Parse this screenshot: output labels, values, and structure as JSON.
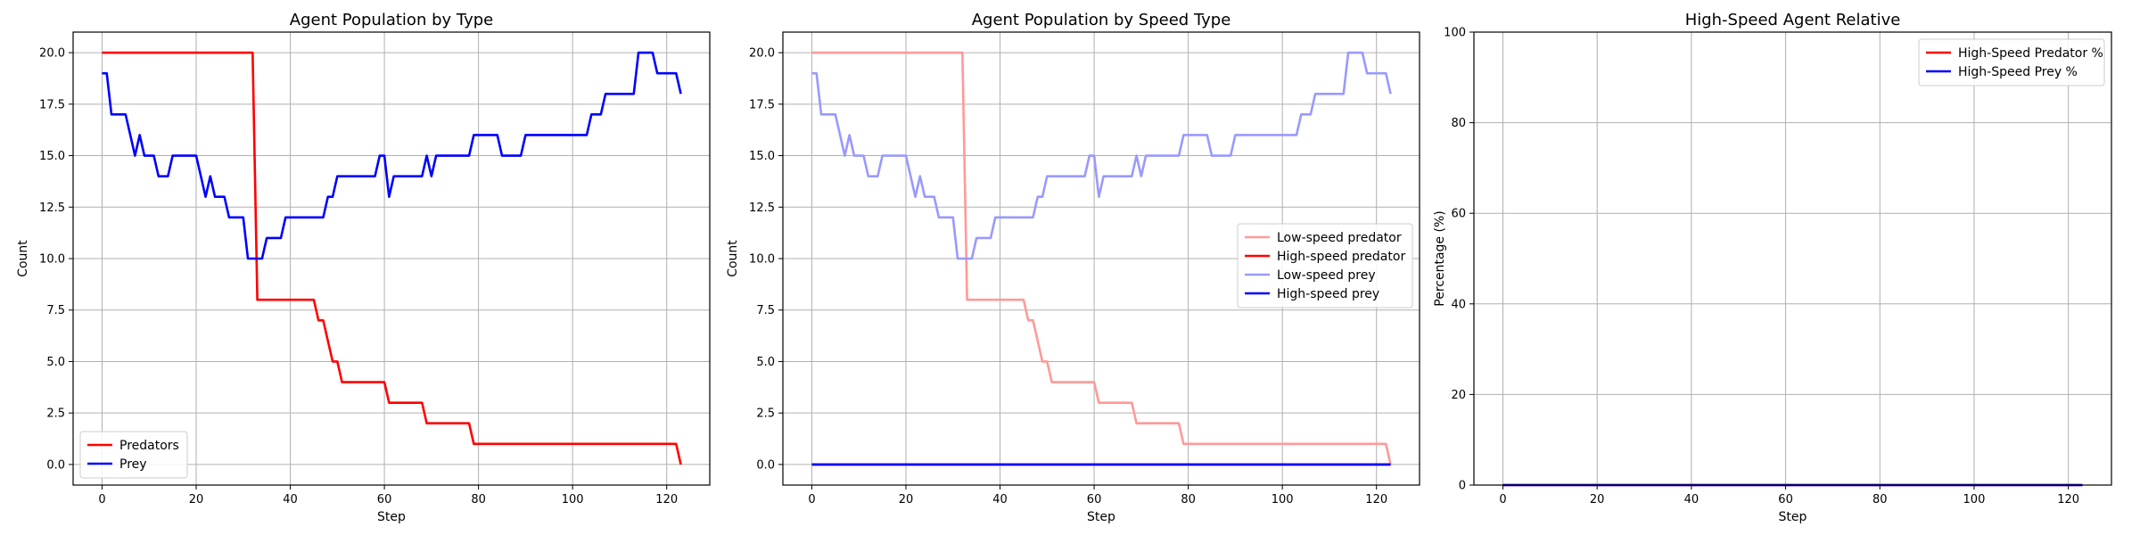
{
  "chart_data": [
    {
      "type": "line",
      "title": "Agent Population by Type",
      "xlabel": "Step",
      "ylabel": "Count",
      "xlim": [
        -6.15,
        129.15
      ],
      "ylim": [
        -1,
        21
      ],
      "xticks": [
        0,
        20,
        40,
        60,
        80,
        100,
        120
      ],
      "xtick_labels": [
        "0",
        "20",
        "40",
        "60",
        "80",
        "100",
        "120"
      ],
      "yticks": [
        0,
        2.5,
        5,
        7.5,
        10,
        12.5,
        15,
        17.5,
        20
      ],
      "ytick_labels": [
        "0.0",
        "2.5",
        "5.0",
        "7.5",
        "10.0",
        "12.5",
        "15.0",
        "17.5",
        "20.0"
      ],
      "grid": true,
      "legend_position": "lower-left",
      "series": [
        {
          "name": "Predators",
          "color": "#ff0000",
          "step_ranges": [
            [
              0,
              32,
              20
            ],
            [
              33,
              45,
              8
            ],
            [
              46,
              47,
              7
            ],
            [
              48,
              48,
              6
            ],
            [
              49,
              50,
              5
            ],
            [
              51,
              60,
              4
            ],
            [
              61,
              68,
              3
            ],
            [
              69,
              78,
              2
            ],
            [
              79,
              122,
              1
            ],
            [
              123,
              123,
              0
            ]
          ]
        },
        {
          "name": "Prey",
          "color": "#0000ff",
          "step_ranges": [
            [
              0,
              0,
              19
            ],
            [
              1,
              1,
              19
            ],
            [
              2,
              5,
              17
            ],
            [
              6,
              6,
              16
            ],
            [
              7,
              7,
              15
            ],
            [
              8,
              8,
              16
            ],
            [
              9,
              11,
              15
            ],
            [
              12,
              14,
              14
            ],
            [
              15,
              20,
              15
            ],
            [
              21,
              21,
              14
            ],
            [
              22,
              22,
              13
            ],
            [
              23,
              23,
              14
            ],
            [
              24,
              26,
              13
            ],
            [
              27,
              30,
              12
            ],
            [
              31,
              34,
              10
            ],
            [
              35,
              38,
              11
            ],
            [
              39,
              47,
              12
            ],
            [
              48,
              49,
              13
            ],
            [
              50,
              51,
              14
            ],
            [
              52,
              58,
              14
            ],
            [
              59,
              59,
              15
            ],
            [
              60,
              60,
              15
            ],
            [
              61,
              61,
              13
            ],
            [
              62,
              68,
              14
            ],
            [
              69,
              69,
              15
            ],
            [
              70,
              70,
              14
            ],
            [
              71,
              71,
              15
            ],
            [
              72,
              78,
              15
            ],
            [
              79,
              84,
              16
            ],
            [
              85,
              89,
              15
            ],
            [
              90,
              103,
              16
            ],
            [
              104,
              106,
              17
            ],
            [
              107,
              113,
              18
            ],
            [
              114,
              117,
              20
            ],
            [
              118,
              122,
              19
            ],
            [
              123,
              123,
              18
            ]
          ]
        }
      ]
    },
    {
      "type": "line",
      "title": "Agent Population by Speed Type",
      "xlabel": "Step",
      "ylabel": "Count",
      "xlim": [
        -6.15,
        129.15
      ],
      "ylim": [
        -1,
        21
      ],
      "xticks": [
        0,
        20,
        40,
        60,
        80,
        100,
        120
      ],
      "xtick_labels": [
        "0",
        "20",
        "40",
        "60",
        "80",
        "100",
        "120"
      ],
      "yticks": [
        0,
        2.5,
        5,
        7.5,
        10,
        12.5,
        15,
        17.5,
        20
      ],
      "ytick_labels": [
        "0.0",
        "2.5",
        "5.0",
        "7.5",
        "10.0",
        "12.5",
        "15.0",
        "17.5",
        "20.0"
      ],
      "grid": true,
      "legend_position": "center-right",
      "series": [
        {
          "name": "Low-speed predator",
          "color": "#ff9999",
          "step_ranges": [
            [
              0,
              32,
              20
            ],
            [
              33,
              45,
              8
            ],
            [
              46,
              47,
              7
            ],
            [
              48,
              48,
              6
            ],
            [
              49,
              50,
              5
            ],
            [
              51,
              60,
              4
            ],
            [
              61,
              68,
              3
            ],
            [
              69,
              78,
              2
            ],
            [
              79,
              122,
              1
            ],
            [
              123,
              123,
              0
            ]
          ]
        },
        {
          "name": "High-speed predator",
          "color": "#ff0000",
          "step_ranges": [
            [
              0,
              123,
              0
            ]
          ]
        },
        {
          "name": "Low-speed prey",
          "color": "#9999ff",
          "step_ranges": [
            [
              0,
              0,
              19
            ],
            [
              1,
              1,
              19
            ],
            [
              2,
              5,
              17
            ],
            [
              6,
              6,
              16
            ],
            [
              7,
              7,
              15
            ],
            [
              8,
              8,
              16
            ],
            [
              9,
              11,
              15
            ],
            [
              12,
              14,
              14
            ],
            [
              15,
              20,
              15
            ],
            [
              21,
              21,
              14
            ],
            [
              22,
              22,
              13
            ],
            [
              23,
              23,
              14
            ],
            [
              24,
              26,
              13
            ],
            [
              27,
              30,
              12
            ],
            [
              31,
              34,
              10
            ],
            [
              35,
              38,
              11
            ],
            [
              39,
              47,
              12
            ],
            [
              48,
              49,
              13
            ],
            [
              50,
              51,
              14
            ],
            [
              52,
              58,
              14
            ],
            [
              59,
              59,
              15
            ],
            [
              60,
              60,
              15
            ],
            [
              61,
              61,
              13
            ],
            [
              62,
              68,
              14
            ],
            [
              69,
              69,
              15
            ],
            [
              70,
              70,
              14
            ],
            [
              71,
              71,
              15
            ],
            [
              72,
              78,
              15
            ],
            [
              79,
              84,
              16
            ],
            [
              85,
              89,
              15
            ],
            [
              90,
              103,
              16
            ],
            [
              104,
              106,
              17
            ],
            [
              107,
              113,
              18
            ],
            [
              114,
              117,
              20
            ],
            [
              118,
              122,
              19
            ],
            [
              123,
              123,
              18
            ]
          ]
        },
        {
          "name": "High-speed prey",
          "color": "#0000ff",
          "step_ranges": [
            [
              0,
              123,
              0
            ]
          ]
        }
      ]
    },
    {
      "type": "line",
      "title": "High-Speed Agent Relative",
      "xlabel": "Step",
      "ylabel": "Percentage (%)",
      "xlim": [
        -6.15,
        129.15
      ],
      "ylim": [
        0,
        100
      ],
      "xticks": [
        0,
        20,
        40,
        60,
        80,
        100,
        120
      ],
      "xtick_labels": [
        "0",
        "20",
        "40",
        "60",
        "80",
        "100",
        "120"
      ],
      "yticks": [
        0,
        20,
        40,
        60,
        80,
        100
      ],
      "ytick_labels": [
        "0",
        "20",
        "40",
        "60",
        "80",
        "100"
      ],
      "grid": true,
      "legend_position": "upper-right",
      "series": [
        {
          "name": "High-Speed Predator %",
          "color": "#ff0000",
          "step_ranges": [
            [
              0,
              123,
              0
            ]
          ]
        },
        {
          "name": "High-Speed Prey %",
          "color": "#0000ff",
          "step_ranges": [
            [
              0,
              123,
              0
            ]
          ]
        }
      ]
    }
  ]
}
